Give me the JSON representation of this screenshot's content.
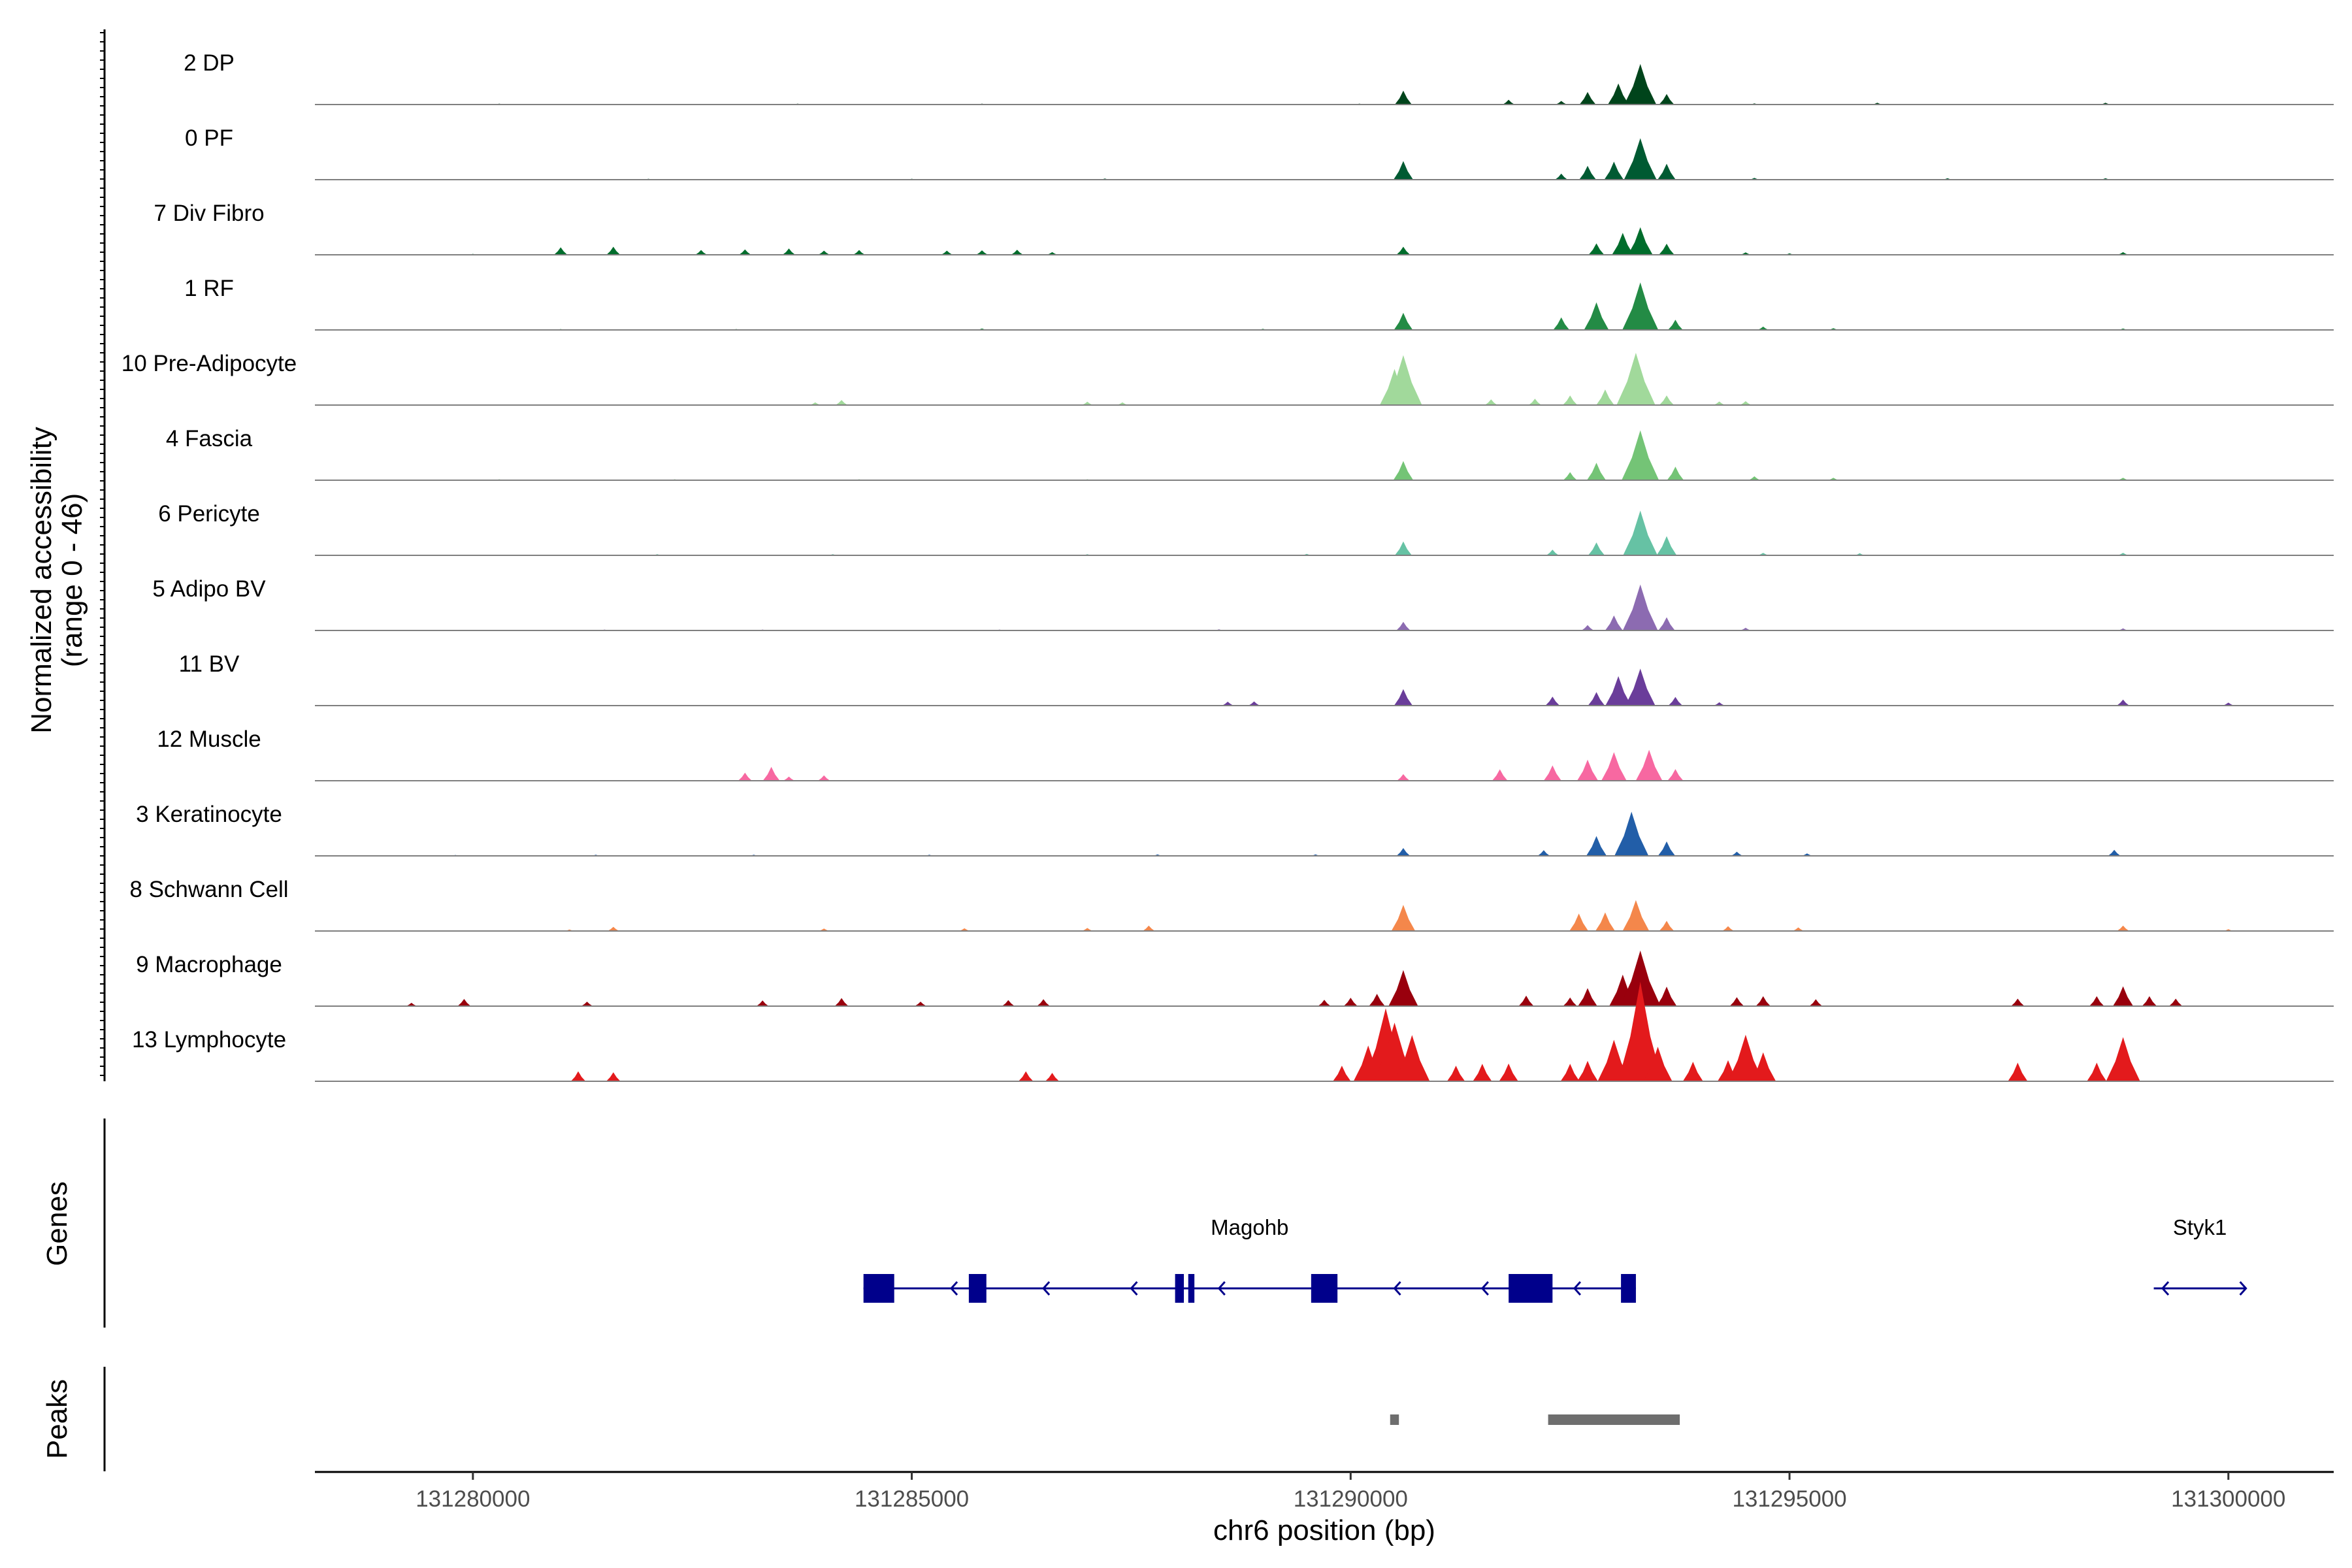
{
  "chart_data": {
    "type": "area",
    "title": "",
    "xlabel": "chr6 position (bp)",
    "ylabel": [
      "Normalized accessibility",
      "(range 0 - 46)"
    ],
    "ylim": [
      0,
      46
    ],
    "xlim": [
      131278200,
      131301200
    ],
    "xticks": [
      {
        "value": 131280000,
        "label": "131280000"
      },
      {
        "value": 131285000,
        "label": "131285000"
      },
      {
        "value": 131290000,
        "label": "131290000"
      },
      {
        "value": 131295000,
        "label": "131295000"
      },
      {
        "value": 131300000,
        "label": "131300000"
      }
    ],
    "tracks": [
      {
        "name": "2 DP",
        "color": "#00441b",
        "peaks": [
          [
            131280300,
            0.3
          ],
          [
            131283700,
            0.3
          ],
          [
            131285800,
            0.3
          ],
          [
            131290100,
            0.3
          ],
          [
            131290600,
            4.6
          ],
          [
            131291800,
            1.6
          ],
          [
            131292400,
            1.2
          ],
          [
            131292700,
            4.2
          ],
          [
            131293050,
            7
          ],
          [
            131293300,
            13.5
          ],
          [
            131293600,
            3.5
          ],
          [
            131294600,
            0.4
          ],
          [
            131296000,
            0.6
          ],
          [
            131298600,
            0.6
          ]
        ]
      },
      {
        "name": "0 PF",
        "color": "#005a32",
        "peaks": [
          [
            131280600,
            0.2
          ],
          [
            131282000,
            0.3
          ],
          [
            131285000,
            0.3
          ],
          [
            131287200,
            0.4
          ],
          [
            131290600,
            6.2
          ],
          [
            131292400,
            2
          ],
          [
            131292700,
            4.6
          ],
          [
            131293000,
            6
          ],
          [
            131293300,
            13.8
          ],
          [
            131293600,
            5.3
          ],
          [
            131294600,
            0.6
          ],
          [
            131296800,
            0.5
          ],
          [
            131298600,
            0.5
          ]
        ]
      },
      {
        "name": "7 Div Fibro",
        "color": "#006d2c",
        "peaks": [
          [
            131280000,
            0.3
          ],
          [
            131281000,
            2.5
          ],
          [
            131281600,
            2.7
          ],
          [
            131282600,
            1.6
          ],
          [
            131283100,
            1.8
          ],
          [
            131283600,
            2.1
          ],
          [
            131284000,
            1.4
          ],
          [
            131284400,
            1.6
          ],
          [
            131285400,
            1.4
          ],
          [
            131285800,
            1.5
          ],
          [
            131286200,
            1.7
          ],
          [
            131286600,
            0.9
          ],
          [
            131290600,
            2.7
          ],
          [
            131292800,
            3.8
          ],
          [
            131293100,
            7.3
          ],
          [
            131293300,
            9.2
          ],
          [
            131293600,
            3.7
          ],
          [
            131294500,
            0.8
          ],
          [
            131295000,
            0.5
          ],
          [
            131298800,
            0.9
          ]
        ]
      },
      {
        "name": "1 RF",
        "color": "#238b45",
        "peaks": [
          [
            131281000,
            0.3
          ],
          [
            131283000,
            0.3
          ],
          [
            131285800,
            0.5
          ],
          [
            131289000,
            0.4
          ],
          [
            131290600,
            5.7
          ],
          [
            131292400,
            4.2
          ],
          [
            131292800,
            9.2
          ],
          [
            131293300,
            15.8
          ],
          [
            131293700,
            3.4
          ],
          [
            131294700,
            1.1
          ],
          [
            131295500,
            0.6
          ],
          [
            131298800,
            0.5
          ]
        ]
      },
      {
        "name": "10 Pre-Adipocyte",
        "color": "#a1d99b",
        "peaks": [
          [
            131283900,
            0.9
          ],
          [
            131284200,
            1.7
          ],
          [
            131287000,
            1.1
          ],
          [
            131287400,
            0.9
          ],
          [
            131290500,
            12
          ],
          [
            131290600,
            16.6
          ],
          [
            131291600,
            1.9
          ],
          [
            131292100,
            2.1
          ],
          [
            131292500,
            3.2
          ],
          [
            131292900,
            5.2
          ],
          [
            131293250,
            17.4
          ],
          [
            131293600,
            3.2
          ],
          [
            131294200,
            1.2
          ],
          [
            131294500,
            1.3
          ]
        ]
      },
      {
        "name": "4 Fascia",
        "color": "#74c476",
        "peaks": [
          [
            131280300,
            0.3
          ],
          [
            131282300,
            0.3
          ],
          [
            131284400,
            0.3
          ],
          [
            131287000,
            0.3
          ],
          [
            131290600,
            6.4
          ],
          [
            131292500,
            2.7
          ],
          [
            131292800,
            5.8
          ],
          [
            131293300,
            16.6
          ],
          [
            131293700,
            4.5
          ],
          [
            131294600,
            1.3
          ],
          [
            131295500,
            0.8
          ],
          [
            131298800,
            0.8
          ]
        ]
      },
      {
        "name": "6 Pericyte",
        "color": "#66c2a4",
        "peaks": [
          [
            131282100,
            0.4
          ],
          [
            131284100,
            0.4
          ],
          [
            131287000,
            0.4
          ],
          [
            131289500,
            0.5
          ],
          [
            131290600,
            4.6
          ],
          [
            131292300,
            1.9
          ],
          [
            131292800,
            4.3
          ],
          [
            131293300,
            14.9
          ],
          [
            131293600,
            6.4
          ],
          [
            131294700,
            0.8
          ],
          [
            131295800,
            0.7
          ],
          [
            131298800,
            0.8
          ]
        ]
      },
      {
        "name": "5 Adipo BV",
        "color": "#8c6bb1",
        "peaks": [
          [
            131281500,
            0.3
          ],
          [
            131283300,
            0.3
          ],
          [
            131286000,
            0.3
          ],
          [
            131288500,
            0.4
          ],
          [
            131290600,
            2.9
          ],
          [
            131292700,
            1.8
          ],
          [
            131293000,
            5
          ],
          [
            131293300,
            15.3
          ],
          [
            131293600,
            4.4
          ],
          [
            131294500,
            0.9
          ],
          [
            131298800,
            0.7
          ]
        ]
      },
      {
        "name": "11 BV",
        "color": "#6a3d9a",
        "peaks": [
          [
            131288600,
            1.3
          ],
          [
            131288900,
            1.4
          ],
          [
            131290600,
            5.5
          ],
          [
            131292300,
            3
          ],
          [
            131292800,
            4.5
          ],
          [
            131293050,
            9.8
          ],
          [
            131293300,
            12.3
          ],
          [
            131293700,
            2.9
          ],
          [
            131294200,
            1.1
          ],
          [
            131298800,
            2
          ],
          [
            131300000,
            1
          ]
        ]
      },
      {
        "name": "12 Muscle",
        "color": "#f768a1",
        "peaks": [
          [
            131283100,
            2.7
          ],
          [
            131283400,
            4.6
          ],
          [
            131283600,
            1.4
          ],
          [
            131284000,
            1.8
          ],
          [
            131290600,
            2.2
          ],
          [
            131291700,
            3.8
          ],
          [
            131292300,
            5.1
          ],
          [
            131292700,
            7
          ],
          [
            131293000,
            9.5
          ],
          [
            131293400,
            10.3
          ],
          [
            131293700,
            3.9
          ]
        ]
      },
      {
        "name": "3 Keratinocyte",
        "color": "#225ea8",
        "peaks": [
          [
            131279800,
            0.3
          ],
          [
            131281400,
            0.4
          ],
          [
            131283200,
            0.4
          ],
          [
            131285200,
            0.4
          ],
          [
            131287800,
            0.5
          ],
          [
            131289600,
            0.5
          ],
          [
            131290600,
            2.6
          ],
          [
            131292200,
            1.9
          ],
          [
            131292800,
            6.6
          ],
          [
            131293200,
            14.7
          ],
          [
            131293600,
            4.8
          ],
          [
            131294400,
            1.4
          ],
          [
            131295200,
            0.8
          ],
          [
            131298700,
            2
          ]
        ]
      },
      {
        "name": "8 Schwann Cell",
        "color": "#f4874b",
        "peaks": [
          [
            131281100,
            0.5
          ],
          [
            131281600,
            1.4
          ],
          [
            131284000,
            0.8
          ],
          [
            131285600,
            0.9
          ],
          [
            131287000,
            1
          ],
          [
            131287700,
            1.8
          ],
          [
            131290600,
            8.7
          ],
          [
            131292600,
            5.8
          ],
          [
            131292900,
            6.2
          ],
          [
            131293250,
            10.3
          ],
          [
            131293600,
            3.4
          ],
          [
            131294300,
            1.6
          ],
          [
            131295100,
            1.2
          ],
          [
            131298800,
            1.8
          ],
          [
            131300000,
            0.6
          ]
        ]
      },
      {
        "name": "9 Macrophage",
        "color": "#99000d",
        "peaks": [
          [
            131279300,
            1.1
          ],
          [
            131279900,
            2.4
          ],
          [
            131281300,
            1.5
          ],
          [
            131283300,
            1.9
          ],
          [
            131284200,
            2.7
          ],
          [
            131285100,
            1.5
          ],
          [
            131286100,
            2
          ],
          [
            131286500,
            2.3
          ],
          [
            131289700,
            2.1
          ],
          [
            131290000,
            2.8
          ],
          [
            131290300,
            4.1
          ],
          [
            131290600,
            12
          ],
          [
            131292000,
            3.5
          ],
          [
            131292500,
            2.9
          ],
          [
            131292700,
            6
          ],
          [
            131293100,
            10.5
          ],
          [
            131293300,
            18.5
          ],
          [
            131293600,
            6.5
          ],
          [
            131294400,
            3
          ],
          [
            131294700,
            3.3
          ],
          [
            131295300,
            2.3
          ],
          [
            131297600,
            2.5
          ],
          [
            131298500,
            3.3
          ],
          [
            131298800,
            6.6
          ],
          [
            131299100,
            3.3
          ],
          [
            131299400,
            2.5
          ]
        ]
      },
      {
        "name": "13 Lymphocyte",
        "color": "#e31a1c",
        "peaks": [
          [
            131281200,
            3.3
          ],
          [
            131281600,
            3
          ],
          [
            131286300,
            3.3
          ],
          [
            131286600,
            2.8
          ],
          [
            131289900,
            5.2
          ],
          [
            131290200,
            11.9
          ],
          [
            131290400,
            24.3
          ],
          [
            131290500,
            19.5
          ],
          [
            131290700,
            15.4
          ],
          [
            131291200,
            5.2
          ],
          [
            131291500,
            5.8
          ],
          [
            131291800,
            5.9
          ],
          [
            131292500,
            5.8
          ],
          [
            131292700,
            6.8
          ],
          [
            131293000,
            13.8
          ],
          [
            131293300,
            33.1
          ],
          [
            131293500,
            11.5
          ],
          [
            131293900,
            6.5
          ],
          [
            131294300,
            7
          ],
          [
            131294500,
            15.5
          ],
          [
            131294700,
            9.6
          ],
          [
            131297600,
            6.2
          ],
          [
            131298500,
            6.2
          ],
          [
            131298800,
            14.7
          ]
        ]
      }
    ],
    "genes_label": "Genes",
    "genes": [
      {
        "name": "Magohb",
        "strand": "-",
        "start": 131284450,
        "end": 131293250,
        "exons": [
          [
            131284450,
            131284800
          ],
          [
            131285650,
            131285850
          ],
          [
            131288000,
            131288100
          ],
          [
            131288150,
            131288220
          ],
          [
            131289550,
            131289850
          ],
          [
            131291800,
            131292300
          ],
          [
            131293080,
            131293250
          ]
        ],
        "arrows": [
          131285450,
          131286500,
          131287500,
          131288500,
          131290500,
          131291500,
          131292550
        ]
      },
      {
        "name": "Styk1",
        "strand": "-",
        "start": 131299150,
        "end": 131300200,
        "exons": [],
        "arrows": [
          131299250
        ]
      }
    ],
    "peaks_label": "Peaks",
    "peak_regions": [
      [
        131290450,
        131290550
      ],
      [
        131292250,
        131293750
      ]
    ]
  }
}
